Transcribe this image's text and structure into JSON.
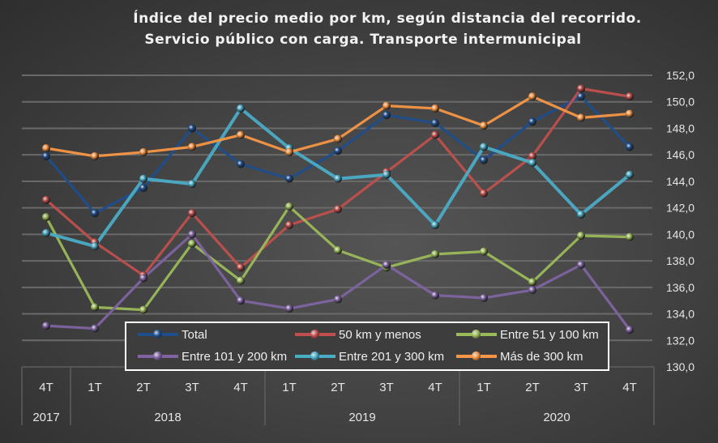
{
  "chart_data": {
    "type": "line",
    "title": "Índice del precio medio por km, según distancia del recorrido.",
    "subtitle": "Servicio público con carga. Transporte intermunicipal",
    "xlabel": "",
    "ylabel": "",
    "x": [
      "4T",
      "1T",
      "2T",
      "3T",
      "4T",
      "1T",
      "2T",
      "3T",
      "4T",
      "1T",
      "2T",
      "3T",
      "4T"
    ],
    "year_groups": [
      {
        "label": "2017",
        "count": 1
      },
      {
        "label": "2018",
        "count": 4
      },
      {
        "label": "2019",
        "count": 4
      },
      {
        "label": "2020",
        "count": 4
      }
    ],
    "ylim": [
      130,
      152
    ],
    "yticks": [
      "130,0",
      "132,0",
      "134,0",
      "136,0",
      "138,0",
      "140,0",
      "142,0",
      "144,0",
      "146,0",
      "148,0",
      "150,0",
      "152,0"
    ],
    "ytick_values": [
      130,
      132,
      134,
      136,
      138,
      140,
      142,
      144,
      146,
      148,
      150,
      152
    ],
    "grid": true,
    "y_axis_side": "right",
    "legend_position": "bottom-inside",
    "series": [
      {
        "name": "Total",
        "color": "#1f4e8c",
        "values": [
          145.9,
          141.6,
          143.5,
          148.0,
          145.3,
          144.2,
          146.3,
          149.0,
          148.4,
          145.6,
          148.5,
          150.4,
          146.6
        ]
      },
      {
        "name": "50 km y menos",
        "color": "#c0504d",
        "values": [
          142.6,
          139.4,
          136.9,
          141.6,
          137.5,
          140.7,
          141.9,
          144.7,
          147.5,
          143.1,
          145.9,
          151.0,
          150.4
        ]
      },
      {
        "name": "Entre 51 y 100 km",
        "color": "#9bbb59",
        "values": [
          141.3,
          134.5,
          134.3,
          139.3,
          136.5,
          142.1,
          138.8,
          137.5,
          138.5,
          138.7,
          136.4,
          139.9,
          139.8
        ]
      },
      {
        "name": "Entre 101 y 200 km",
        "color": "#8064a2",
        "values": [
          133.1,
          132.9,
          136.7,
          140.0,
          135.0,
          134.4,
          135.1,
          137.7,
          135.4,
          135.2,
          135.8,
          137.7,
          132.8
        ]
      },
      {
        "name": "Entre 201 y 300 km",
        "color": "#4bacc6",
        "values": [
          140.1,
          139.1,
          144.2,
          143.8,
          149.5,
          146.5,
          144.2,
          144.5,
          140.7,
          146.6,
          145.4,
          141.5,
          144.5
        ]
      },
      {
        "name": "Más de 300 km",
        "color": "#f79646",
        "values": [
          146.5,
          145.9,
          146.2,
          146.6,
          147.5,
          146.2,
          147.2,
          149.7,
          149.5,
          148.2,
          150.4,
          148.8,
          149.1
        ]
      }
    ]
  }
}
